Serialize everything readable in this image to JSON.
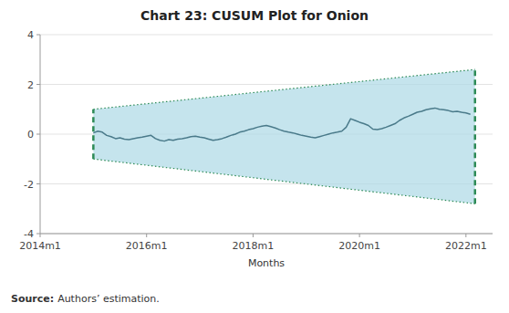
{
  "chart_data": {
    "type": "line",
    "title": "Chart 23: CUSUM Plot for Onion",
    "xlabel": "Months",
    "source_label": "Source:",
    "source": "Authors’ estimation.",
    "xlim": [
      2014.0,
      2022.5
    ],
    "xticks": [
      {
        "value": 2014.0,
        "label": "2014m1"
      },
      {
        "value": 2016.0,
        "label": "2016m1"
      },
      {
        "value": 2018.0,
        "label": "2018m1"
      },
      {
        "value": 2020.0,
        "label": "2020m1"
      },
      {
        "value": 2022.0,
        "label": "2022m1"
      }
    ],
    "ylim": [
      -4,
      4
    ],
    "yticks": [
      -4,
      -2,
      0,
      2,
      4
    ],
    "grid": true,
    "series": [
      {
        "type": "band",
        "color": "#add8e6",
        "line_style": "dotted",
        "x": [
          2015.0,
          2022.17
        ],
        "upper": [
          1.0,
          2.6
        ],
        "lower": [
          -1.0,
          -2.8
        ]
      },
      {
        "type": "line",
        "color": "#4a7a8a",
        "x": [
          2015.0,
          2015.083,
          2015.167,
          2015.25,
          2015.333,
          2015.417,
          2015.5,
          2015.583,
          2015.667,
          2015.75,
          2015.833,
          2015.917,
          2016.0,
          2016.083,
          2016.167,
          2016.25,
          2016.333,
          2016.417,
          2016.5,
          2016.583,
          2016.667,
          2016.75,
          2016.833,
          2016.917,
          2017.0,
          2017.083,
          2017.167,
          2017.25,
          2017.333,
          2017.417,
          2017.5,
          2017.583,
          2017.667,
          2017.75,
          2017.833,
          2017.917,
          2018.0,
          2018.083,
          2018.167,
          2018.25,
          2018.333,
          2018.417,
          2018.5,
          2018.583,
          2018.667,
          2018.75,
          2018.833,
          2018.917,
          2019.0,
          2019.083,
          2019.167,
          2019.25,
          2019.333,
          2019.417,
          2019.5,
          2019.583,
          2019.667,
          2019.75,
          2019.833,
          2019.917,
          2020.0,
          2020.083,
          2020.167,
          2020.25,
          2020.333,
          2020.417,
          2020.5,
          2020.583,
          2020.667,
          2020.75,
          2020.833,
          2020.917,
          2021.0,
          2021.083,
          2021.167,
          2021.25,
          2021.333,
          2021.417,
          2021.5,
          2021.583,
          2021.667,
          2021.75,
          2021.833,
          2021.917,
          2022.0,
          2022.083
        ],
        "values": [
          0.05,
          0.12,
          0.08,
          -0.05,
          -0.1,
          -0.18,
          -0.15,
          -0.2,
          -0.22,
          -0.18,
          -0.15,
          -0.12,
          -0.08,
          -0.05,
          -0.18,
          -0.25,
          -0.28,
          -0.22,
          -0.25,
          -0.2,
          -0.18,
          -0.15,
          -0.1,
          -0.08,
          -0.12,
          -0.15,
          -0.2,
          -0.25,
          -0.22,
          -0.18,
          -0.12,
          -0.05,
          0.0,
          0.08,
          0.12,
          0.18,
          0.22,
          0.28,
          0.32,
          0.35,
          0.3,
          0.25,
          0.18,
          0.12,
          0.08,
          0.05,
          0.0,
          -0.05,
          -0.08,
          -0.12,
          -0.15,
          -0.1,
          -0.05,
          0.0,
          0.05,
          0.08,
          0.12,
          0.28,
          0.62,
          0.55,
          0.48,
          0.42,
          0.35,
          0.2,
          0.18,
          0.22,
          0.28,
          0.35,
          0.42,
          0.55,
          0.65,
          0.72,
          0.8,
          0.88,
          0.92,
          0.98,
          1.02,
          1.05,
          1.0,
          0.98,
          0.95,
          0.9,
          0.92,
          0.88,
          0.85,
          0.8
        ]
      }
    ]
  }
}
